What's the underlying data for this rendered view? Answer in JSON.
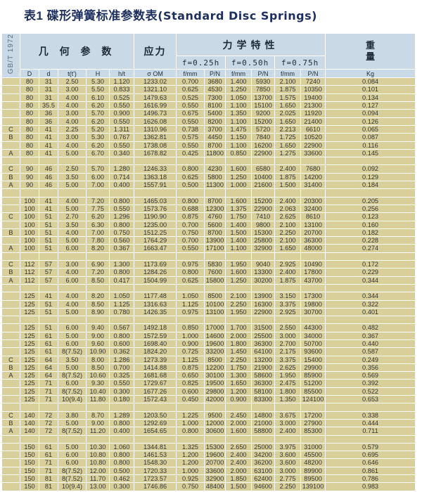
{
  "title": {
    "cn": "表1  碟形弹簧标准参数表",
    "en": "(Standard Disc Springs)"
  },
  "header": {
    "standard": "GB/T 1972",
    "geometry": "几 何 参 数",
    "stress": "应力",
    "mechanics": "力学特性",
    "weight": "重量",
    "f025": "f=0.25h",
    "f050": "f=0.50h",
    "f075": "f=0.75h",
    "columns": [
      "D",
      "d",
      "t(t')",
      "H",
      "h/t",
      "σ OM",
      "f/mm",
      "P/N",
      "f/mm",
      "P/N",
      "f/mm",
      "P/N",
      "Kg"
    ]
  },
  "groups": [
    [
      [
        "",
        "80",
        "31",
        "2.50",
        "5.30",
        "1.120",
        "1233.02",
        "0.700",
        "3680",
        "1.400",
        "5930",
        "2.100",
        "7240",
        "0.084"
      ],
      [
        "",
        "80",
        "31",
        "3.00",
        "5.50",
        "0.833",
        "1321.10",
        "0.625",
        "4530",
        "1.250",
        "7850",
        "1.875",
        "10350",
        "0.101"
      ],
      [
        "",
        "80",
        "31",
        "4.00",
        "6.10",
        "0.525",
        "1479.63",
        "0.525",
        "7300",
        "1.050",
        "13700",
        "1.575",
        "19400",
        "0.134"
      ],
      [
        "",
        "80",
        "35.5",
        "4.00",
        "6.20",
        "0.550",
        "1616.99",
        "0.550",
        "8100",
        "1.100",
        "15100",
        "1.650",
        "21300",
        "0.127"
      ],
      [
        "",
        "80",
        "36",
        "3.00",
        "5.70",
        "0.900",
        "1496.73",
        "0.675",
        "5400",
        "1.350",
        "9200",
        "2.025",
        "11920",
        "0.094"
      ],
      [
        "",
        "80",
        "36",
        "4.00",
        "6.20",
        "0.550",
        "1626.08",
        "0.550",
        "8200",
        "1.100",
        "15200",
        "1.650",
        "21400",
        "0.126"
      ],
      [
        "C",
        "80",
        "41",
        "2.25",
        "5.20",
        "1.311",
        "1310.96",
        "0.738",
        "3700",
        "1.475",
        "5720",
        "2.213",
        "6610",
        "0.065"
      ],
      [
        "B",
        "80",
        "41",
        "3.00",
        "5.30",
        "0.767",
        "1362.81",
        "0.575",
        "4450",
        "1.150",
        "7840",
        "1.725",
        "10520",
        "0.087"
      ],
      [
        "",
        "80",
        "41",
        "4.00",
        "6.20",
        "0.550",
        "1738.08",
        "0.550",
        "8700",
        "1.100",
        "16200",
        "1.650",
        "22900",
        "0.116"
      ],
      [
        "A",
        "80",
        "41",
        "5.00",
        "6.70",
        "0.340",
        "1678.82",
        "0.425",
        "11800",
        "0.850",
        "22900",
        "1.275",
        "33600",
        "0.145"
      ]
    ],
    [
      [
        "C",
        "90",
        "46",
        "2.50",
        "5.70",
        "1.280",
        "1246.33",
        "0.800",
        "4230",
        "1.600",
        "6580",
        "2.400",
        "7680",
        "0.092"
      ],
      [
        "B",
        "90",
        "46",
        "3.50",
        "6.00",
        "0.714",
        "1363.18",
        "0.625",
        "5800",
        "1.250",
        "10400",
        "1.875",
        "14200",
        "0.129"
      ],
      [
        "A",
        "90",
        "46",
        "5.00",
        "7.00",
        "0.400",
        "1557.91",
        "0.500",
        "11300",
        "1.000",
        "21600",
        "1.500",
        "31400",
        "0.184"
      ]
    ],
    [
      [
        "",
        "100",
        "41",
        "4.00",
        "7.20",
        "0.800",
        "1465.03",
        "0.800",
        "8700",
        "1.600",
        "15200",
        "2.400",
        "20300",
        "0.205"
      ],
      [
        "",
        "100",
        "41",
        "5.00",
        "7.75",
        "0.550",
        "1573.76",
        "0.688",
        "12300",
        "1.375",
        "22900",
        "2.063",
        "32400",
        "0.256"
      ],
      [
        "C",
        "100",
        "51",
        "2.70",
        "6.20",
        "1.296",
        "1190.90",
        "0.875",
        "4760",
        "1.750",
        "7410",
        "2.625",
        "8610",
        "0.123"
      ],
      [
        "",
        "100",
        "51",
        "3.50",
        "6.30",
        "0.800",
        "1235.00",
        "0.700",
        "5600",
        "1.400",
        "9800",
        "2.100",
        "13100",
        "0.160"
      ],
      [
        "B",
        "100",
        "51",
        "4.00",
        "7.00",
        "0.750",
        "1512.25",
        "0.750",
        "8700",
        "1.500",
        "15300",
        "2.250",
        "20700",
        "0.182"
      ],
      [
        "",
        "100",
        "51",
        "5.00",
        "7.80",
        "0.560",
        "1764.29",
        "0.700",
        "13900",
        "1.400",
        "25800",
        "2.100",
        "36300",
        "0.228"
      ],
      [
        "A",
        "100",
        "51",
        "6.00",
        "8.20",
        "0.367",
        "1663.47",
        "0.550",
        "17100",
        "1.100",
        "32900",
        "1.650",
        "48000",
        "0.274"
      ]
    ],
    [
      [
        "C",
        "112",
        "57",
        "3.00",
        "6.90",
        "1.300",
        "1173.69",
        "0.975",
        "5830",
        "1.950",
        "9040",
        "2.925",
        "10490",
        "0.172"
      ],
      [
        "B",
        "112",
        "57",
        "4.00",
        "7.20",
        "0.800",
        "1284.26",
        "0.800",
        "7600",
        "1.600",
        "13300",
        "2.400",
        "17800",
        "0.229"
      ],
      [
        "A",
        "112",
        "57",
        "6.00",
        "8.50",
        "0.417",
        "1504.99",
        "0.625",
        "15800",
        "1.250",
        "30200",
        "1.875",
        "43700",
        "0.344"
      ]
    ],
    [
      [
        "",
        "125",
        "41",
        "4.00",
        "8.20",
        "1.050",
        "1177.48",
        "1.050",
        "8500",
        "2.100",
        "13900",
        "3.150",
        "17300",
        "0.344"
      ],
      [
        "",
        "125",
        "51",
        "4.00",
        "8.50",
        "1.125",
        "1316.63",
        "1.125",
        "10100",
        "2.250",
        "16300",
        "3.375",
        "19800",
        "0.322"
      ],
      [
        "",
        "125",
        "51",
        "5.00",
        "8.90",
        "0.780",
        "1426.35",
        "0.975",
        "13100",
        "1.950",
        "22900",
        "2.925",
        "30700",
        "0.401"
      ]
    ],
    [
      [
        "",
        "125",
        "51",
        "6.00",
        "9.40",
        "0.567",
        "1492.18",
        "0.850",
        "17000",
        "1.700",
        "31500",
        "2.550",
        "44300",
        "0.482"
      ],
      [
        "",
        "125",
        "61",
        "5.00",
        "9.00",
        "0.800",
        "1572.59",
        "1.000",
        "14600",
        "2.000",
        "25500",
        "3.000",
        "34000",
        "0.367"
      ],
      [
        "",
        "125",
        "61",
        "6.00",
        "9.60",
        "0.600",
        "1698.40",
        "0.900",
        "19600",
        "1.800",
        "36300",
        "2.700",
        "50700",
        "0.440"
      ],
      [
        "",
        "125",
        "61",
        "8(7.52)",
        "10.90",
        "0.362",
        "1824.20",
        "0.725",
        "33200",
        "1.450",
        "64100",
        "2.175",
        "93600",
        "0.587"
      ],
      [
        "C",
        "125",
        "64",
        "3.50",
        "8.00",
        "1.286",
        "1273.39",
        "1.125",
        "8500",
        "2.250",
        "13200",
        "3.375",
        "15400",
        "0.249"
      ],
      [
        "B",
        "125",
        "64",
        "5.00",
        "8.50",
        "0.700",
        "1414.88",
        "0.875",
        "12200",
        "1.750",
        "21900",
        "2.625",
        "29900",
        "0.356"
      ],
      [
        "A",
        "125",
        "64",
        "8(7.52)",
        "10.60",
        "0.325",
        "1681.68",
        "0.650",
        "30100",
        "1.300",
        "58600",
        "1.950",
        "85900",
        "0.569"
      ],
      [
        "",
        "125",
        "71",
        "6.00",
        "9.30",
        "0.550",
        "1729.67",
        "0.825",
        "19500",
        "1.650",
        "36300",
        "2.475",
        "51200",
        "0.392"
      ],
      [
        "",
        "125",
        "71",
        "8(7.52)",
        "10.40",
        "0.300",
        "1677.26",
        "0.600",
        "29800",
        "1.200",
        "58100",
        "1.800",
        "85500",
        "0.522"
      ],
      [
        "",
        "125",
        "71",
        "10(9.4)",
        "11.80",
        "0.180",
        "1572.43",
        "0.450",
        "42000",
        "0.900",
        "83300",
        "1.350",
        "124100",
        "0.653"
      ]
    ],
    [
      [
        "C",
        "140",
        "72",
        "3.80",
        "8.70",
        "1.289",
        "1203.50",
        "1.225",
        "9500",
        "2.450",
        "14800",
        "3.675",
        "17200",
        "0.338"
      ],
      [
        "B",
        "140",
        "72",
        "5.00",
        "9.00",
        "0.800",
        "1292.69",
        "1.000",
        "12000",
        "2.000",
        "21000",
        "3.000",
        "27900",
        "0.444"
      ],
      [
        "A",
        "140",
        "72",
        "8(7.52)",
        "11.20",
        "0.400",
        "1654.65",
        "0.800",
        "30600",
        "1.600",
        "58800",
        "2.400",
        "85300",
        "0.711"
      ]
    ],
    [
      [
        "",
        "150",
        "61",
        "5.00",
        "10.30",
        "1.060",
        "1344.81",
        "1.325",
        "15300",
        "2.650",
        "25000",
        "3.975",
        "31000",
        "0.579"
      ],
      [
        "",
        "150",
        "61",
        "6.00",
        "10.80",
        "0.800",
        "1461.53",
        "1.200",
        "19600",
        "2.400",
        "34200",
        "3.600",
        "45500",
        "0.695"
      ],
      [
        "",
        "150",
        "71",
        "6.00",
        "10.80",
        "0.800",
        "1548.30",
        "1.200",
        "20700",
        "2.400",
        "36200",
        "3.600",
        "48200",
        "0.646"
      ],
      [
        "",
        "150",
        "71",
        "8(7.52)",
        "12.00",
        "0.500",
        "1720.33",
        "1.000",
        "33600",
        "2.000",
        "63100",
        "3.000",
        "89900",
        "0.861"
      ],
      [
        "",
        "150",
        "81",
        "8(7.52)",
        "11.70",
        "0.462",
        "1723.57",
        "0.925",
        "32900",
        "1.850",
        "62400",
        "2.775",
        "89500",
        "0.786"
      ],
      [
        "",
        "150",
        "81",
        "10(9.4)",
        "13.00",
        "0.300",
        "1746.86",
        "0.750",
        "48400",
        "1.500",
        "94600",
        "2.250",
        "139100",
        "0.983"
      ]
    ]
  ],
  "colors": {
    "header_bg": "#c9dae6",
    "row_bg": "#d8cf9b",
    "title": "#1d2f5e"
  }
}
